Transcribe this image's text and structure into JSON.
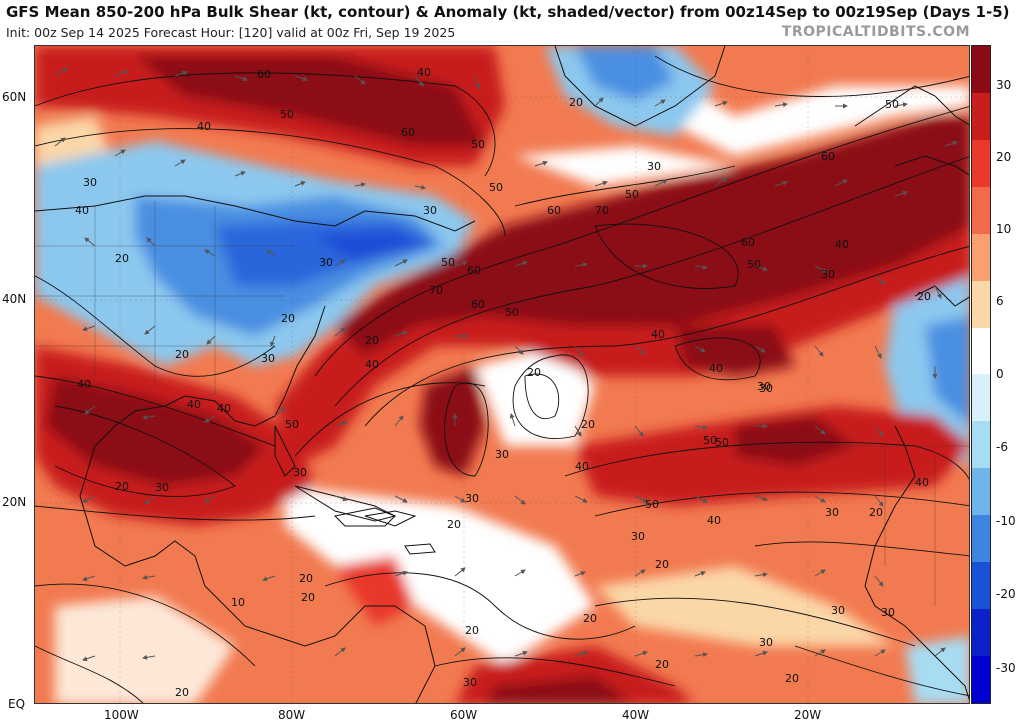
{
  "header": {
    "title": "GFS Mean 850-200 hPa Bulk Shear (kt, contour) & Anomaly (kt, shaded/vector) from 00z14Sep to 00z19Sep (Days 1-5)",
    "subtitle": "Init: 00z Sep 14 2025   Forecast Hour: [120]   valid at 00z Fri, Sep 19 2025",
    "brand": "TROPICALTIDBITS.COM"
  },
  "axes": {
    "lat_labels": [
      "60N",
      "40N",
      "20N",
      "EQ"
    ],
    "lon_labels": [
      "100W",
      "80W",
      "60W",
      "40W",
      "20W"
    ]
  },
  "colorbar": {
    "labels": [
      "30",
      "20",
      "10",
      "6",
      "0",
      "-6",
      "-10",
      "-20",
      "-30"
    ],
    "colors": [
      "#8b0a14",
      "#c81e1e",
      "#e8392a",
      "#f26b48",
      "#f9a070",
      "#fbd7a8",
      "#ffffff",
      "#d8f0fa",
      "#a8dcf2",
      "#6fb5ea",
      "#3d85e0",
      "#1a52d6",
      "#0a22c8",
      "#0000d0"
    ]
  },
  "contour_labels": [
    "60",
    "40",
    "50",
    "60",
    "50",
    "40",
    "30",
    "40",
    "30",
    "50",
    "20",
    "30",
    "20",
    "20",
    "40",
    "50",
    "60",
    "70",
    "50",
    "60",
    "70",
    "60",
    "50",
    "40",
    "30",
    "60",
    "50",
    "40",
    "30",
    "20",
    "40",
    "30",
    "50",
    "40",
    "30",
    "20",
    "20",
    "10",
    "20",
    "20",
    "30",
    "20",
    "30",
    "40",
    "50",
    "20",
    "30",
    "40",
    "50",
    "30",
    "20",
    "60",
    "50",
    "40",
    "30",
    "20",
    "30",
    "40",
    "50",
    "30",
    "20",
    "20",
    "20",
    "20",
    "30",
    "20",
    "30",
    "30",
    "20",
    "40",
    "30",
    "20"
  ]
}
